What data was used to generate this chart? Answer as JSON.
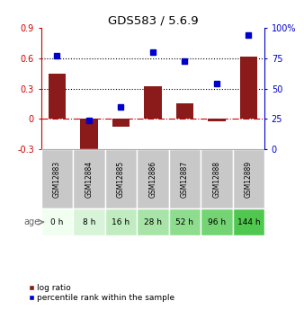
{
  "title": "GDS583 / 5.6.9",
  "samples": [
    "GSM12883",
    "GSM12884",
    "GSM12885",
    "GSM12886",
    "GSM12887",
    "GSM12888",
    "GSM12889"
  ],
  "ages": [
    "0 h",
    "8 h",
    "16 h",
    "28 h",
    "52 h",
    "96 h",
    "144 h"
  ],
  "log_ratio": [
    0.45,
    -0.37,
    -0.08,
    0.32,
    0.15,
    -0.02,
    0.62
  ],
  "percentile_rank": [
    0.77,
    0.24,
    0.35,
    0.8,
    0.73,
    0.54,
    0.94
  ],
  "bar_color": "#8B1A1A",
  "dot_color": "#0000CC",
  "ylim_left": [
    -0.3,
    0.9
  ],
  "ylim_right": [
    0,
    1.0
  ],
  "yticks_left": [
    -0.3,
    0.0,
    0.3,
    0.6,
    0.9
  ],
  "ytick_labels_left": [
    "-0.3",
    "0",
    "0.3",
    "0.6",
    "0.9"
  ],
  "yticks_right": [
    0.0,
    0.25,
    0.5,
    0.75,
    1.0
  ],
  "ytick_labels_right": [
    "0",
    "25",
    "50",
    "75",
    "100%"
  ],
  "hline_y_left": [
    0.3,
    0.6
  ],
  "zero_line_color": "#CC0000",
  "hline_color": "#000000",
  "age_bg_colors": [
    "#f0fff0",
    "#d8f0d8",
    "#c0e8c0",
    "#a8e0a8",
    "#90d890",
    "#78d078",
    "#50c050"
  ],
  "sample_bg_color": "#c8c8c8",
  "legend_log_ratio": "log ratio",
  "legend_percentile": "percentile rank within the sample"
}
